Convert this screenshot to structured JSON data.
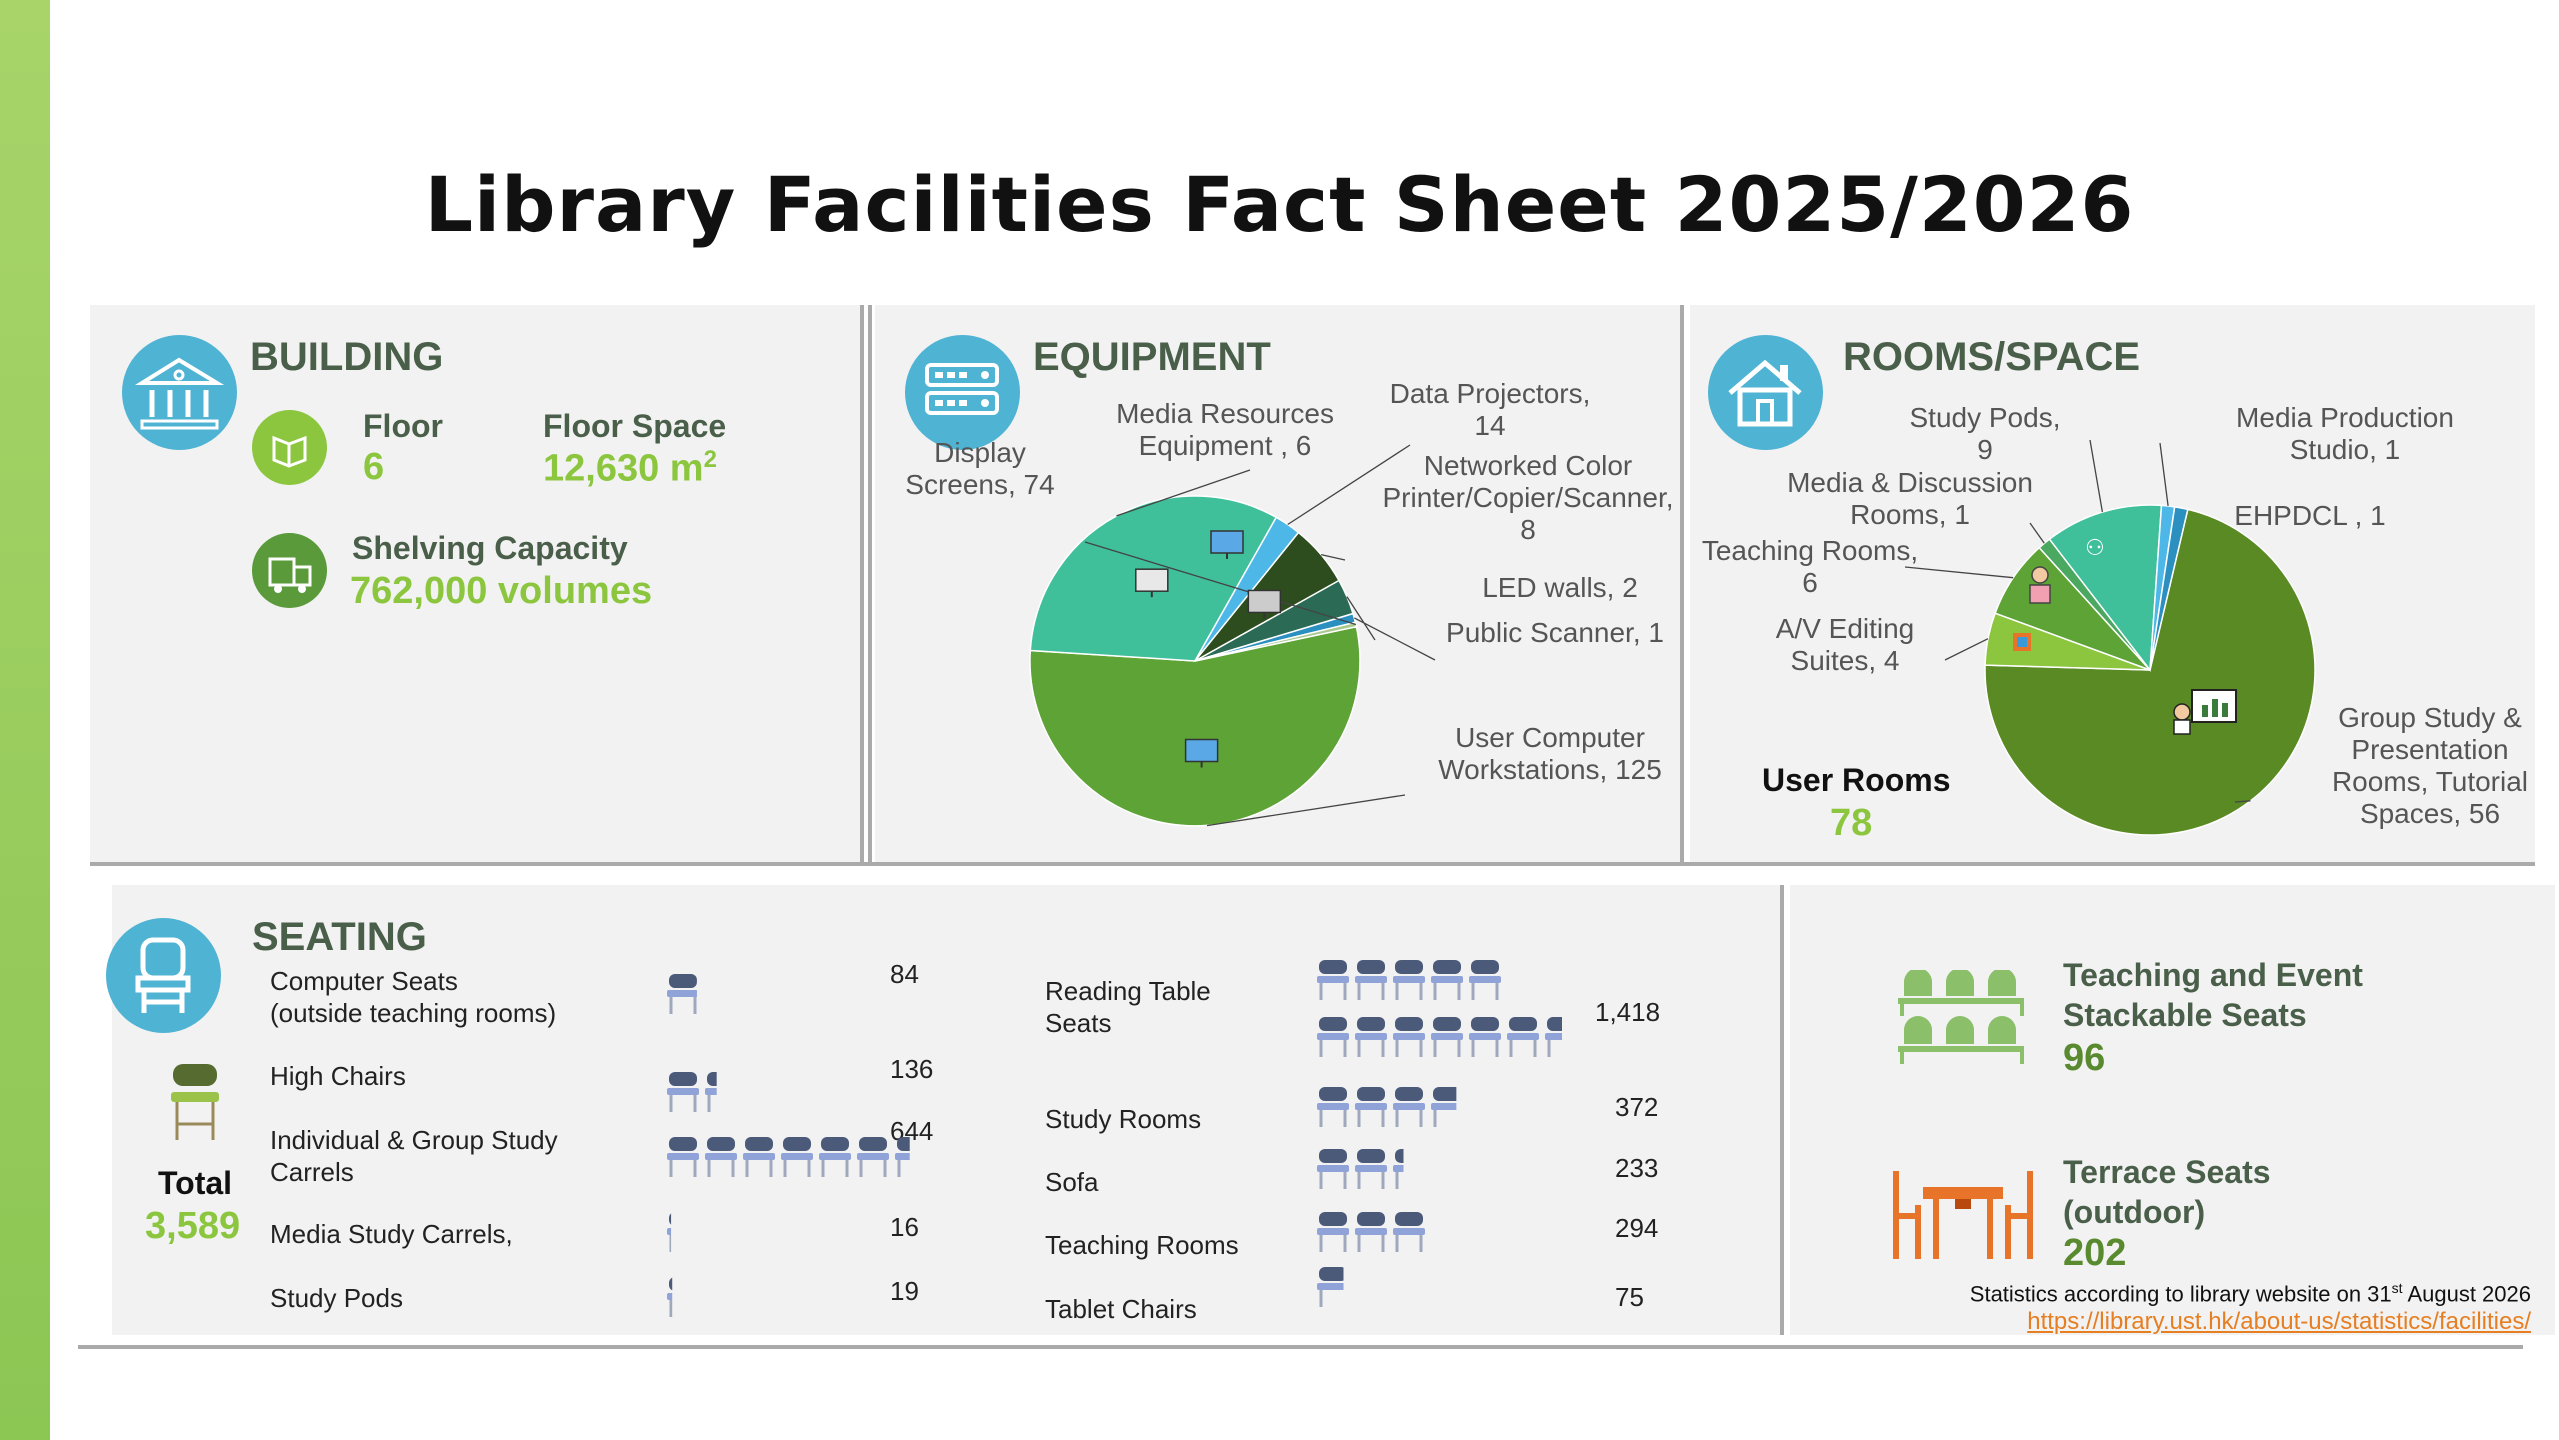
{
  "title": "Library Facilities Fact Sheet 2025/2026",
  "colors": {
    "accent_green": "#8cc63f",
    "dark_green": "#4a5f4a",
    "icon_blue": "#4fb3d3",
    "link_orange": "#e67e22"
  },
  "building": {
    "heading": "BUILDING",
    "floor_label": "Floor",
    "floor_value": "6",
    "space_label": "Floor Space",
    "space_value": "12,630 m",
    "space_sup": "2",
    "shelving_label": "Shelving Capacity",
    "shelving_value": "762,000 volumes"
  },
  "equipment": {
    "heading": "EQUIPMENT"
  },
  "rooms": {
    "heading": "ROOMS/SPACE",
    "user_rooms_label": "User Rooms",
    "user_rooms_value": "78"
  },
  "seating": {
    "heading": "SEATING",
    "total_label": "Total",
    "total_value": "3,589",
    "left_items": [
      {
        "label": "Computer Seats\n(outside teaching rooms)",
        "value": "84"
      },
      {
        "label": "High Chairs",
        "value": "136"
      },
      {
        "label": "Individual & Group Study\nCarrels",
        "value": "644"
      },
      {
        "label": "Media Study Carrels,",
        "value": "16"
      },
      {
        "label": "Study Pods",
        "value": "19"
      }
    ],
    "right_items": [
      {
        "label": "Reading Table\nSeats",
        "value": "1,418"
      },
      {
        "label": "Study Rooms",
        "value": "372"
      },
      {
        "label": "Sofa",
        "value": "233"
      },
      {
        "label": "Teaching Rooms",
        "value": "294"
      },
      {
        "label": "Tablet Chairs",
        "value": "75"
      }
    ],
    "stackable_label": "Teaching and Event\nStackable Seats",
    "stackable_value": "96",
    "terrace_label": "Terrace Seats\n(outdoor)",
    "terrace_value": "202"
  },
  "footnote": {
    "text": "Statistics according to library website on 31",
    "sup": "st",
    "text_end": " August 2026",
    "link": "https://library.ust.hk/about-us/statistics/facilities/"
  },
  "chart_data": [
    {
      "type": "pie",
      "title": "EQUIPMENT",
      "slices": [
        {
          "label": "User Computer Workstations",
          "value": 125,
          "color": "#5ea336"
        },
        {
          "label": "Display Screens",
          "value": 74,
          "color": "#3fbf9a"
        },
        {
          "label": "Media Resources Equipment",
          "value": 6,
          "color": "#4db8e8"
        },
        {
          "label": "Data Projectors",
          "value": 14,
          "color": "#2e4d1e"
        },
        {
          "label": "Networked Color Printer/Copier/Scanner",
          "value": 8,
          "color": "#2b6b55"
        },
        {
          "label": "LED walls",
          "value": 2,
          "color": "#2b8fc0"
        },
        {
          "label": "Public Scanner",
          "value": 1,
          "color": "#a9c88f"
        }
      ],
      "labels_text": [
        "Display\nScreens, 74",
        "Media Resources\nEquipment ,  6",
        "Data Projectors,\n14",
        "Networked Color\nPrinter/Copier/Scanner,\n8",
        "LED walls,  2",
        "Public Scanner,  1",
        "User Computer\nWorkstations,  125"
      ]
    },
    {
      "type": "pie",
      "title": "ROOMS/SPACE",
      "slices": [
        {
          "label": "Group Study & Presentation Rooms, Tutorial Spaces",
          "value": 56,
          "color": "#5a8a23"
        },
        {
          "label": "A/V Editing Suites",
          "value": 4,
          "color": "#8cc63f"
        },
        {
          "label": "Teaching Rooms",
          "value": 6,
          "color": "#5ea336"
        },
        {
          "label": "Media & Discussion Rooms",
          "value": 1,
          "color": "#4aa860"
        },
        {
          "label": "Study Pods",
          "value": 9,
          "color": "#3fbf9a"
        },
        {
          "label": "Media Production Studio",
          "value": 1,
          "color": "#4db8e8"
        },
        {
          "label": "EHPDCL",
          "value": 1,
          "color": "#2b8fc0"
        }
      ],
      "labels_text": [
        "Study Pods,\n9",
        "Media Production\nStudio, 1",
        "Media & Discussion\nRooms,  1",
        "EHPDCL , 1",
        "Teaching Rooms,\n6",
        "A/V Editing\nSuites,  4",
        "Group Study &\nPresentation\nRooms, Tutorial\nSpaces,  56"
      ]
    }
  ]
}
